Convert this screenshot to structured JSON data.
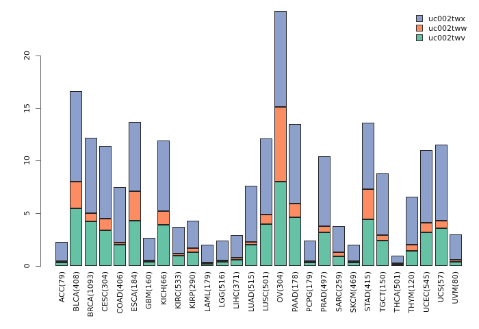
{
  "legend": {
    "items": [
      {
        "label": "uc002twx",
        "color": "#8da0cb"
      },
      {
        "label": "uc002tww",
        "color": "#fc8d62"
      },
      {
        "label": "uc002twv",
        "color": "#66c2a5"
      }
    ]
  },
  "axis": {
    "y_tick_labels": [
      "0",
      "5",
      "10",
      "15",
      "20"
    ]
  },
  "chart_data": {
    "type": "bar",
    "stacked": true,
    "title": "",
    "xlabel": "",
    "ylabel": "",
    "ylim": [
      0,
      24.5
    ],
    "y_ticks": [
      0,
      5,
      10,
      15,
      20
    ],
    "grid": false,
    "legend_position": "top-right",
    "categories": [
      "ACC(79)",
      "BLCA(408)",
      "BRCA(1093)",
      "CESC(304)",
      "COAD(406)",
      "ESCA(184)",
      "GBM(160)",
      "KICH(66)",
      "KIRC(533)",
      "KIRP(290)",
      "LAML(179)",
      "LGG(516)",
      "LIHC(371)",
      "LUAD(515)",
      "LUSC(501)",
      "OV(304)",
      "PAAD(178)",
      "PCPG(179)",
      "PRAD(497)",
      "SARC(259)",
      "SKCM(469)",
      "STAD(415)",
      "TGCT(150)",
      "THCA(501)",
      "THYM(120)",
      "UCEC(545)",
      "UCS(57)",
      "UVM(80)"
    ],
    "series": [
      {
        "name": "uc002twv",
        "color": "#66c2a5",
        "values": [
          0.3,
          5.5,
          4.2,
          3.4,
          2.0,
          4.3,
          0.4,
          3.9,
          1.0,
          1.3,
          0.2,
          0.4,
          0.6,
          2.0,
          4.0,
          8.0,
          4.6,
          0.3,
          3.2,
          0.9,
          0.3,
          4.4,
          2.4,
          0.05,
          1.4,
          3.2,
          3.6,
          0.4
        ]
      },
      {
        "name": "uc002tww",
        "color": "#fc8d62",
        "values": [
          0.1,
          2.5,
          0.8,
          1.1,
          0.2,
          2.8,
          0.1,
          1.3,
          0.2,
          0.4,
          0.1,
          0.1,
          0.2,
          0.3,
          0.9,
          7.1,
          1.3,
          0.1,
          0.6,
          0.4,
          0.1,
          2.9,
          0.5,
          0.05,
          0.6,
          0.9,
          0.7,
          0.2
        ]
      },
      {
        "name": "uc002twx",
        "color": "#8da0cb",
        "values": [
          1.9,
          8.6,
          7.2,
          6.9,
          5.3,
          6.6,
          2.2,
          6.7,
          2.5,
          2.6,
          1.7,
          1.9,
          2.1,
          5.3,
          7.2,
          9.1,
          7.6,
          2.0,
          6.6,
          2.5,
          1.6,
          6.3,
          5.9,
          0.8,
          4.6,
          6.9,
          7.2,
          2.4
        ]
      }
    ]
  }
}
